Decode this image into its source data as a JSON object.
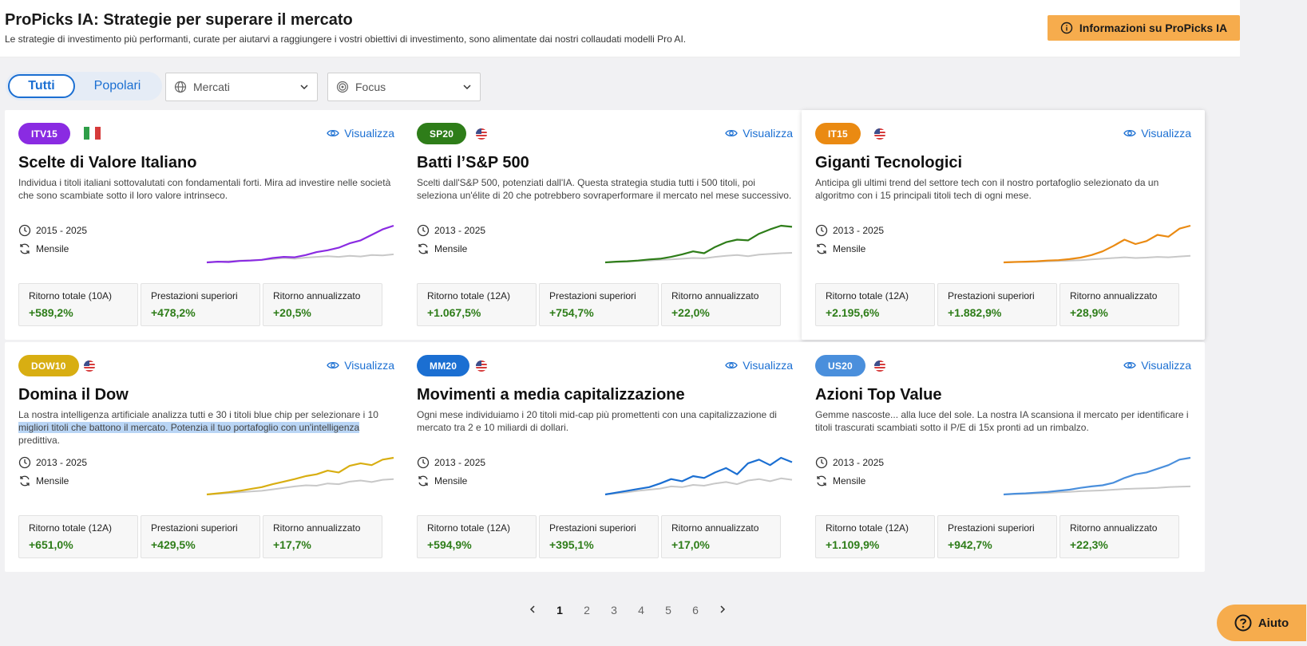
{
  "header": {
    "title": "ProPicks IA: Strategie per superare il mercato",
    "subtitle": "Le strategie di investimento più performanti, curate per aiutarvi a raggiungere i vostri obiettivi di investimento, sono alimentate dai nostri collaudati modelli Pro AI.",
    "info_button": "Informazioni su ProPicks IA"
  },
  "filters": {
    "toggle_all": "Tutti",
    "toggle_popular": "Popolari",
    "markets": "Mercati",
    "focus": "Focus"
  },
  "cards": [
    {
      "badge": "ITV15",
      "badge_color": "#8a2be2",
      "flag": "italy-flag-icon",
      "view": "Visualizza",
      "title": "Scelte di Valore Italiano",
      "desc": "Individua i titoli italiani sottovalutati con fondamentali forti. Mira ad investire nelle società che sono scambiate sotto il loro valore intrinseco.",
      "period": "2015 - 2025",
      "frequency": "Mensile",
      "line_color": "#8a2be2",
      "spark": [
        0,
        0.02,
        0.01,
        0.04,
        0.05,
        0.07,
        0.12,
        0.15,
        0.14,
        0.2,
        0.28,
        0.33,
        0.4,
        0.52,
        0.6,
        0.75,
        0.9,
        1.0
      ],
      "bench": [
        0,
        0.02,
        0.03,
        0.05,
        0.06,
        0.07,
        0.09,
        0.12,
        0.1,
        0.13,
        0.15,
        0.17,
        0.15,
        0.18,
        0.16,
        0.2,
        0.19,
        0.22
      ],
      "stats": [
        {
          "label": "Ritorno totale (10A)",
          "value": "+589,2%"
        },
        {
          "label": "Prestazioni superiori",
          "value": "+478,2%"
        },
        {
          "label": "Ritorno annualizzato",
          "value": "+20,5%"
        }
      ]
    },
    {
      "badge": "SP20",
      "badge_color": "#2e7d19",
      "flag": "usa-flag-icon",
      "view": "Visualizza",
      "title": "Batti l’S&P 500",
      "desc": "Scelti dall'S&P 500, potenziati dall'IA. Questa strategia studia tutti i 500 titoli, poi seleziona un'élite di 20 che potrebbero sovraperformare il mercato nel mese successivo.",
      "period": "2013 - 2025",
      "frequency": "Mensile",
      "line_color": "#2e7d19",
      "spark": [
        0,
        0.02,
        0.03,
        0.05,
        0.08,
        0.1,
        0.15,
        0.22,
        0.3,
        0.25,
        0.42,
        0.55,
        0.62,
        0.6,
        0.78,
        0.9,
        1.0,
        0.97
      ],
      "bench": [
        0,
        0.01,
        0.02,
        0.04,
        0.05,
        0.07,
        0.08,
        0.1,
        0.12,
        0.11,
        0.15,
        0.18,
        0.2,
        0.17,
        0.21,
        0.23,
        0.25,
        0.26
      ],
      "stats": [
        {
          "label": "Ritorno totale (12A)",
          "value": "+1.067,5%"
        },
        {
          "label": "Prestazioni superiori",
          "value": "+754,7%"
        },
        {
          "label": "Ritorno annualizzato",
          "value": "+22,0%"
        }
      ]
    },
    {
      "badge": "IT15",
      "badge_color": "#ea8a12",
      "flag": "usa-flag-icon",
      "view": "Visualizza",
      "title": "Giganti Tecnologici",
      "desc": "Anticipa gli ultimi trend del settore tech con il nostro portafoglio selezionato da un algoritmo con i 15 principali titoli tech di ogni mese.",
      "period": "2013 - 2025",
      "frequency": "Mensile",
      "line_color": "#ea8a12",
      "spark": [
        0,
        0.01,
        0.02,
        0.03,
        0.05,
        0.06,
        0.09,
        0.13,
        0.2,
        0.3,
        0.45,
        0.62,
        0.5,
        0.58,
        0.75,
        0.7,
        0.92,
        1.0
      ],
      "bench": [
        0,
        0.01,
        0.01,
        0.02,
        0.03,
        0.04,
        0.05,
        0.06,
        0.08,
        0.1,
        0.12,
        0.14,
        0.12,
        0.13,
        0.15,
        0.14,
        0.16,
        0.18
      ],
      "stats": [
        {
          "label": "Ritorno totale (12A)",
          "value": "+2.195,6%"
        },
        {
          "label": "Prestazioni superiori",
          "value": "+1.882,9%"
        },
        {
          "label": "Ritorno annualizzato",
          "value": "+28,9%"
        }
      ]
    },
    {
      "badge": "DOW10",
      "badge_color": "#d8ae12",
      "flag": "usa-flag-icon",
      "view": "Visualizza",
      "title": "Domina il Dow",
      "desc_plain": "La nostra intelligenza artificiale analizza tutti e 30 i titoli blue chip per selezionare i 10 ",
      "desc_highlight": "migliori titoli che battono il mercato. Potenzia il tuo portafoglio con un'intelligenza",
      "desc_tail": " predittiva.",
      "period": "2013 - 2025",
      "frequency": "Mensile",
      "line_color": "#d8ae12",
      "spark": [
        0,
        0.03,
        0.06,
        0.1,
        0.15,
        0.2,
        0.28,
        0.35,
        0.42,
        0.5,
        0.55,
        0.65,
        0.6,
        0.78,
        0.85,
        0.8,
        0.95,
        1.0
      ],
      "bench": [
        0,
        0.02,
        0.04,
        0.06,
        0.08,
        0.1,
        0.14,
        0.18,
        0.22,
        0.25,
        0.24,
        0.3,
        0.28,
        0.35,
        0.38,
        0.34,
        0.4,
        0.42
      ],
      "stats": [
        {
          "label": "Ritorno totale (12A)",
          "value": "+651,0%"
        },
        {
          "label": "Prestazioni superiori",
          "value": "+429,5%"
        },
        {
          "label": "Ritorno annualizzato",
          "value": "+17,7%"
        }
      ]
    },
    {
      "badge": "MM20",
      "badge_color": "#1b6fd2",
      "flag": "usa-flag-icon",
      "view": "Visualizza",
      "title": "Movimenti a media capitalizzazione",
      "desc": "Ogni mese individuiamo i 20 titoli mid-cap più promettenti con una capitalizzazione di mercato tra 2 e 10 miliardi di dollari.",
      "period": "2013 - 2025",
      "frequency": "Mensile",
      "line_color": "#1b6fd2",
      "spark": [
        0,
        0.05,
        0.1,
        0.15,
        0.2,
        0.3,
        0.42,
        0.36,
        0.5,
        0.45,
        0.6,
        0.72,
        0.55,
        0.85,
        0.95,
        0.8,
        1.0,
        0.88
      ],
      "bench": [
        0,
        0.03,
        0.06,
        0.1,
        0.13,
        0.16,
        0.22,
        0.2,
        0.26,
        0.24,
        0.3,
        0.34,
        0.28,
        0.38,
        0.42,
        0.36,
        0.44,
        0.4
      ],
      "stats": [
        {
          "label": "Ritorno totale (12A)",
          "value": "+594,9%"
        },
        {
          "label": "Prestazioni superiori",
          "value": "+395,1%"
        },
        {
          "label": "Ritorno annualizzato",
          "value": "+17,0%"
        }
      ]
    },
    {
      "badge": "US20",
      "badge_color": "#4a8fdc",
      "flag": "usa-flag-icon",
      "view": "Visualizza",
      "title": "Azioni Top Value",
      "desc": "Gemme nascoste... alla luce del sole. La nostra IA scansiona il mercato per identificare i titoli trascurati scambiati sotto il P/E di 15x pronti ad un rimbalzo.",
      "period": "2013 - 2025",
      "frequency": "Mensile",
      "line_color": "#4a8fdc",
      "spark": [
        0,
        0.02,
        0.03,
        0.05,
        0.07,
        0.1,
        0.13,
        0.18,
        0.22,
        0.25,
        0.32,
        0.45,
        0.55,
        0.6,
        0.7,
        0.8,
        0.95,
        1.0
      ],
      "bench": [
        0,
        0.01,
        0.02,
        0.03,
        0.04,
        0.06,
        0.07,
        0.09,
        0.1,
        0.11,
        0.13,
        0.15,
        0.16,
        0.17,
        0.18,
        0.2,
        0.21,
        0.22
      ],
      "stats": [
        {
          "label": "Ritorno totale (12A)",
          "value": "+1.109,9%"
        },
        {
          "label": "Prestazioni superiori",
          "value": "+942,7%"
        },
        {
          "label": "Ritorno annualizzato",
          "value": "+22,3%"
        }
      ]
    }
  ],
  "pagination": {
    "pages": [
      "1",
      "2",
      "3",
      "4",
      "5",
      "6"
    ],
    "current": "1"
  },
  "help_button": "Aiuto"
}
